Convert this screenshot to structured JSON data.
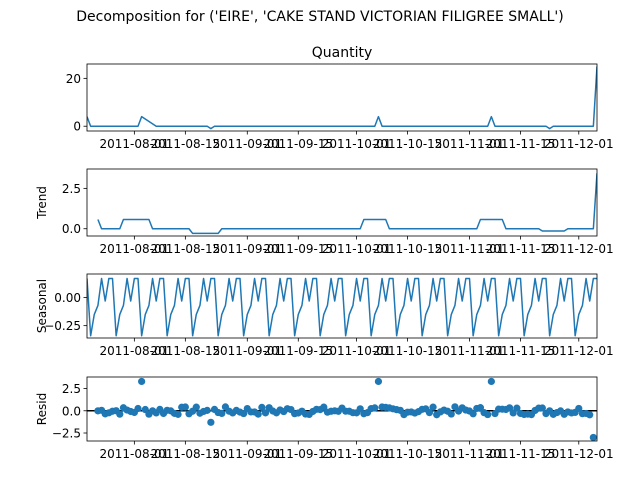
{
  "figure": {
    "title": "Decomposition for ('EIRE', 'CAKE STAND VICTORIAN FILIGREE SMALL')"
  },
  "colors": {
    "line": "#1f77b4",
    "marker": "#1f77b4",
    "zero_line": "#000000"
  },
  "chart_data": [
    {
      "type": "line",
      "panel": "observed",
      "title": "Quantity",
      "ylabel": "",
      "xlim": [
        "2011-07-19",
        "2011-12-06"
      ],
      "ylim": [
        -2,
        26
      ],
      "yticks": [
        {
          "v": 0,
          "label": "0"
        },
        {
          "v": 20,
          "label": "20"
        }
      ],
      "x": [
        "2011-07-19",
        "2011-07-20",
        "2011-07-27",
        "2011-07-28",
        "2011-08-02",
        "2011-08-03",
        "2011-08-07",
        "2011-08-20",
        "2011-08-21",
        "2011-08-22",
        "2011-08-23",
        "2011-09-05",
        "2011-09-07",
        "2011-09-08",
        "2011-10-06",
        "2011-10-07",
        "2011-10-08",
        "2011-11-05",
        "2011-11-06",
        "2011-11-07",
        "2011-11-08",
        "2011-11-22",
        "2011-11-23",
        "2011-11-24",
        "2011-12-04",
        "2011-12-05",
        "2011-12-06"
      ],
      "y": [
        4,
        0,
        0,
        0,
        0,
        4,
        0,
        0,
        0,
        -1,
        0,
        0,
        0,
        0,
        0,
        4,
        0,
        0,
        0,
        4,
        0,
        0,
        -1,
        0,
        0,
        0,
        25
      ]
    },
    {
      "type": "line",
      "panel": "trend",
      "title": "",
      "ylabel": "Trend",
      "xlim": [
        "2011-07-19",
        "2011-12-06"
      ],
      "ylim": [
        -0.45,
        3.7
      ],
      "yticks": [
        {
          "v": 0,
          "label": "0.0"
        },
        {
          "v": 2.5,
          "label": "2.5"
        }
      ],
      "x": [
        "2011-07-22",
        "2011-07-23",
        "2011-07-28",
        "2011-07-29",
        "2011-08-05",
        "2011-08-06",
        "2011-08-16",
        "2011-08-17",
        "2011-08-24",
        "2011-08-25",
        "2011-10-02",
        "2011-10-03",
        "2011-10-09",
        "2011-10-10",
        "2011-11-03",
        "2011-11-04",
        "2011-11-10",
        "2011-11-11",
        "2011-11-20",
        "2011-11-21",
        "2011-11-27",
        "2011-11-28",
        "2011-12-05",
        "2011-12-06"
      ],
      "y": [
        0.57,
        0,
        0,
        0.57,
        0.57,
        0,
        0,
        -0.29,
        -0.29,
        0,
        0,
        0.57,
        0.57,
        0,
        0,
        0.57,
        0.57,
        0,
        0,
        -0.14,
        -0.14,
        0,
        0,
        3.43
      ]
    },
    {
      "type": "line",
      "panel": "seasonal",
      "title": "",
      "ylabel": "Seasonal",
      "xlim": [
        "2011-07-19",
        "2011-12-06"
      ],
      "ylim": [
        -0.36,
        0.21
      ],
      "yticks": [
        {
          "v": 0,
          "label": "0.00"
        },
        {
          "v": -0.25,
          "label": "−0.25"
        }
      ],
      "start": "2011-07-19",
      "period_pattern": [
        0.17,
        -0.34,
        -0.15,
        -0.07,
        0.17,
        -0.03,
        0.17
      ],
      "n_days": 141
    },
    {
      "type": "scatter",
      "panel": "resid",
      "title": "",
      "ylabel": "Resid",
      "xlim": [
        "2011-07-19",
        "2011-12-06"
      ],
      "ylim": [
        -3.4,
        3.8
      ],
      "yticks": [
        {
          "v": -2.5,
          "label": "−2.5"
        },
        {
          "v": 0,
          "label": "0.0"
        },
        {
          "v": 2.5,
          "label": "2.5"
        }
      ],
      "start": "2011-07-22",
      "outliers": [
        {
          "x": "2011-08-03",
          "y": 3.3
        },
        {
          "x": "2011-08-22",
          "y": -1.3
        },
        {
          "x": "2011-10-07",
          "y": 3.3
        },
        {
          "x": "2011-11-07",
          "y": 3.3
        },
        {
          "x": "2011-12-05",
          "y": -3.0
        }
      ],
      "n_days": 137
    }
  ],
  "x_tick_labels": [
    {
      "date": "2011-08-01",
      "label": "2011-08-01"
    },
    {
      "date": "2011-08-15",
      "label": "2011-08-15"
    },
    {
      "date": "2011-09-01",
      "label": "2011-09-01"
    },
    {
      "date": "2011-09-15",
      "label": "2011-09-15"
    },
    {
      "date": "2011-10-01",
      "label": "2011-10-01"
    },
    {
      "date": "2011-10-15",
      "label": "2011-10-15"
    },
    {
      "date": "2011-11-01",
      "label": "2011-11-01"
    },
    {
      "date": "2011-11-15",
      "label": "2011-11-15"
    },
    {
      "date": "2011-12-01",
      "label": "2011-12-01"
    }
  ]
}
